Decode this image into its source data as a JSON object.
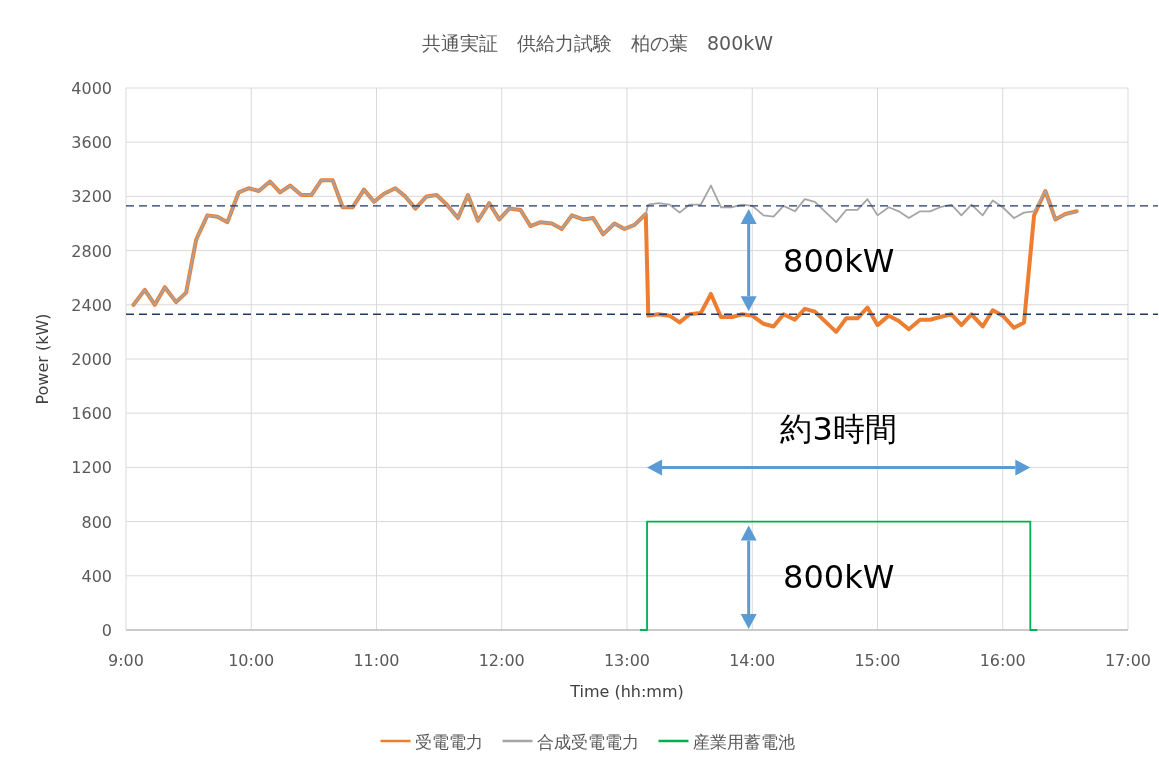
{
  "chart_data": {
    "type": "line",
    "title": "共通実証　供給力試験　柏の葉　800kW",
    "xlabel": "Time (hh:mm)",
    "ylabel": "Power (kW)",
    "x": [
      9.06,
      9.15,
      9.23,
      9.31,
      9.4,
      9.48,
      9.56,
      9.65,
      9.73,
      9.81,
      9.9,
      9.98,
      10.06,
      10.15,
      10.23,
      10.31,
      10.4,
      10.48,
      10.56,
      10.65,
      10.73,
      10.81,
      10.9,
      10.98,
      11.06,
      11.15,
      11.23,
      11.31,
      11.4,
      11.48,
      11.56,
      11.65,
      11.73,
      11.81,
      11.9,
      11.98,
      12.06,
      12.15,
      12.23,
      12.31,
      12.4,
      12.48,
      12.56,
      12.65,
      12.73,
      12.81,
      12.9,
      12.98,
      13.06,
      13.15,
      13.17,
      13.25,
      13.34,
      13.42,
      13.5,
      13.59,
      13.67,
      13.75,
      13.84,
      13.92,
      14.0,
      14.09,
      14.17,
      14.25,
      14.34,
      14.42,
      14.5,
      14.59,
      14.67,
      14.75,
      14.84,
      14.92,
      15.0,
      15.09,
      15.17,
      15.25,
      15.34,
      15.42,
      15.5,
      15.59,
      15.67,
      15.75,
      15.84,
      15.92,
      16.0,
      16.09,
      16.17,
      16.25,
      16.34,
      16.42,
      16.5,
      16.59
    ],
    "series": [
      {
        "name": "受電電力",
        "color": "#ed7d31",
        "values": [
          2400,
          2510,
          2400,
          2530,
          2420,
          2490,
          2880,
          3060,
          3050,
          3010,
          3230,
          3260,
          3240,
          3310,
          3230,
          3280,
          3210,
          3210,
          3320,
          3320,
          3120,
          3120,
          3250,
          3160,
          3220,
          3260,
          3200,
          3110,
          3200,
          3210,
          3140,
          3040,
          3210,
          3020,
          3150,
          3030,
          3110,
          3100,
          2980,
          3010,
          3000,
          2960,
          3060,
          3030,
          3040,
          2920,
          3000,
          2960,
          2990,
          3070,
          2320,
          2330,
          2320,
          2270,
          2330,
          2340,
          2480,
          2310,
          2310,
          2330,
          2320,
          2260,
          2240,
          2330,
          2290,
          2370,
          2350,
          2270,
          2200,
          2300,
          2300,
          2380,
          2250,
          2320,
          2280,
          2220,
          2290,
          2290,
          2310,
          2330,
          2250,
          2330,
          2240,
          2360,
          2320,
          2230,
          2270,
          3060,
          3240,
          3030,
          3070,
          3090
        ]
      },
      {
        "name": "合成受電電力",
        "color": "#a5a5a5",
        "values": [
          2400,
          2510,
          2400,
          2530,
          2420,
          2490,
          2880,
          3060,
          3050,
          3010,
          3230,
          3260,
          3240,
          3310,
          3230,
          3280,
          3210,
          3210,
          3320,
          3320,
          3120,
          3120,
          3250,
          3160,
          3220,
          3260,
          3200,
          3110,
          3200,
          3210,
          3140,
          3040,
          3210,
          3020,
          3150,
          3030,
          3110,
          3100,
          2980,
          3010,
          3000,
          2960,
          3060,
          3030,
          3040,
          2920,
          3000,
          2960,
          2990,
          3070,
          3140,
          3150,
          3140,
          3080,
          3140,
          3140,
          3280,
          3120,
          3120,
          3140,
          3130,
          3060,
          3050,
          3130,
          3090,
          3180,
          3160,
          3080,
          3010,
          3100,
          3100,
          3180,
          3060,
          3120,
          3090,
          3040,
          3090,
          3090,
          3120,
          3140,
          3060,
          3140,
          3060,
          3170,
          3120,
          3040,
          3080,
          3090,
          3240,
          3030,
          3070,
          3090
        ]
      },
      {
        "name": "産業用蓄電池",
        "color": "#00b050",
        "x": [
          13.11,
          13.16,
          13.16,
          16.22,
          16.22,
          16.27
        ],
        "values": [
          0,
          0,
          800,
          800,
          0,
          0
        ]
      }
    ],
    "xlim": [
      9,
      17
    ],
    "ylim": [
      0,
      4000
    ],
    "xticks": [
      {
        "value": 9,
        "label": "9:00"
      },
      {
        "value": 10,
        "label": "10:00"
      },
      {
        "value": 11,
        "label": "11:00"
      },
      {
        "value": 12,
        "label": "12:00"
      },
      {
        "value": 13,
        "label": "13:00"
      },
      {
        "value": 14,
        "label": "14:00"
      },
      {
        "value": 15,
        "label": "15:00"
      },
      {
        "value": 16,
        "label": "16:00"
      },
      {
        "value": 17,
        "label": "17:00"
      }
    ],
    "yticks": [
      0,
      400,
      800,
      1200,
      1600,
      2000,
      2400,
      2800,
      3200,
      3600,
      4000
    ],
    "grid": true,
    "legend": "bottom",
    "ref_lines": [
      {
        "axis": "y",
        "value": 3130,
        "color": "#1f3864",
        "line_style": "dashed"
      },
      {
        "axis": "y",
        "value": 2330,
        "color": "#1f3864",
        "line_style": "dashed"
      }
    ],
    "annotations": [
      "800kW",
      "約3時間",
      "800kW"
    ]
  }
}
